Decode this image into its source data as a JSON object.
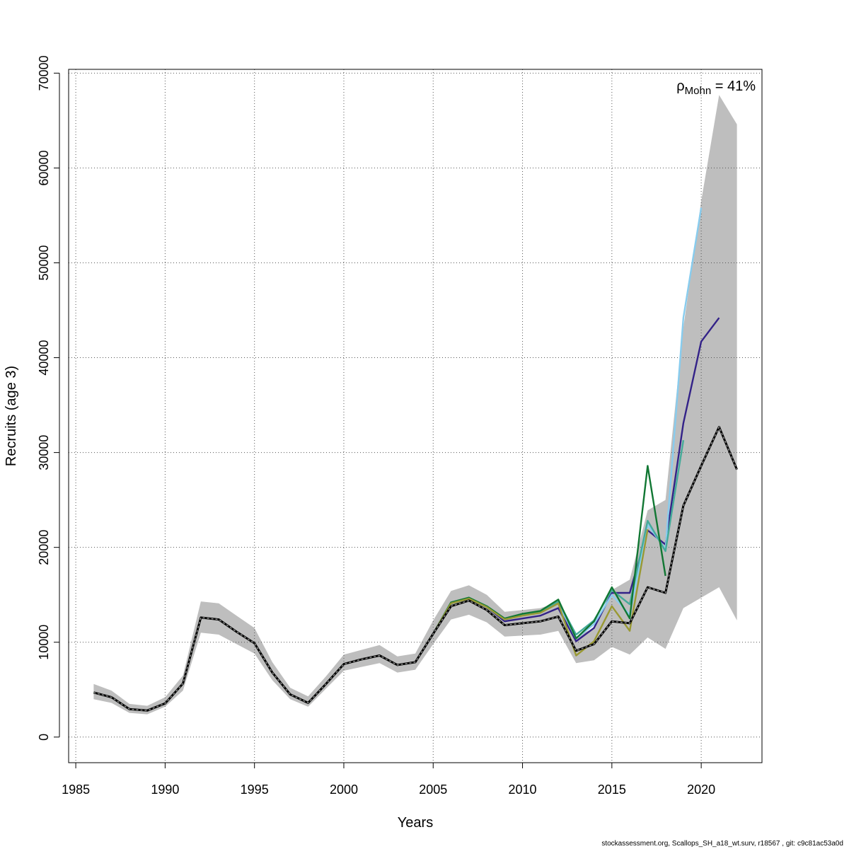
{
  "chart_data": {
    "type": "line",
    "xlabel": "Years",
    "ylabel": "Recruits (age 3)",
    "xlim": [
      1984.6,
      2023.4
    ],
    "ylim": [
      -2700,
      70400
    ],
    "xticks": [
      1985,
      1990,
      1995,
      2000,
      2005,
      2010,
      2015,
      2020
    ],
    "yticks": [
      0,
      10000,
      20000,
      30000,
      40000,
      50000,
      60000,
      70000
    ],
    "grid": true,
    "annotation": {
      "rho_symbol": "ρ",
      "rho_subscript": "Mohn",
      "rho_value": " = 41%"
    },
    "band": {
      "x": [
        1986,
        1987,
        1988,
        1989,
        1990,
        1991,
        1992,
        1993,
        1994,
        1995,
        1996,
        1997,
        1998,
        1999,
        2000,
        2001,
        2002,
        2003,
        2004,
        2005,
        2006,
        2007,
        2008,
        2009,
        2010,
        2011,
        2012,
        2013,
        2014,
        2015,
        2016,
        2017,
        2018,
        2019,
        2020,
        2021,
        2022
      ],
      "lower": [
        4000,
        3600,
        2550,
        2400,
        3200,
        4900,
        11000,
        10800,
        9800,
        8800,
        6000,
        4000,
        3200,
        5100,
        7000,
        7400,
        7800,
        6800,
        7100,
        9800,
        12400,
        12900,
        12100,
        10600,
        10700,
        10800,
        11200,
        7800,
        8100,
        9500,
        8700,
        10500,
        9300,
        13600,
        14700,
        15800,
        12300
      ],
      "upper": [
        5600,
        4900,
        3500,
        3300,
        4200,
        6500,
        14300,
        14100,
        12800,
        11500,
        7900,
        5200,
        4300,
        6400,
        8700,
        9200,
        9700,
        8500,
        8800,
        12300,
        15400,
        16000,
        15000,
        13200,
        13400,
        13600,
        14200,
        10600,
        11500,
        15500,
        16600,
        23900,
        25000,
        43200,
        56500,
        67700,
        64600
      ]
    },
    "series": [
      {
        "color": "#000000",
        "dashed": true,
        "x": [
          1986,
          1987,
          1988,
          1989,
          1990,
          1991,
          1992,
          1993,
          1994,
          1995,
          1996,
          1997,
          1998,
          1999,
          2000,
          2001,
          2002,
          2003,
          2004,
          2005,
          2006,
          2007,
          2008,
          2009,
          2010,
          2011,
          2012,
          2013,
          2014,
          2015,
          2016,
          2017,
          2018,
          2019,
          2020,
          2021,
          2022
        ],
        "values": [
          4700,
          4200,
          2950,
          2800,
          3550,
          5650,
          12600,
          12400,
          11100,
          9900,
          6800,
          4500,
          3600,
          5600,
          7700,
          8200,
          8600,
          7600,
          7900,
          10900,
          13800,
          14400,
          13400,
          11800,
          12000,
          12200,
          12700,
          9100,
          9800,
          12200,
          12000,
          15800,
          15200,
          24400,
          28600,
          32700,
          28200
        ]
      },
      {
        "color": "#332288",
        "dashed": false,
        "x": [
          1986,
          1987,
          1988,
          1989,
          1990,
          1991,
          1992,
          1993,
          1994,
          1995,
          1996,
          1997,
          1998,
          1999,
          2000,
          2001,
          2002,
          2003,
          2004,
          2005,
          2006,
          2007,
          2008,
          2009,
          2010,
          2011,
          2012,
          2013,
          2014,
          2015,
          2016,
          2017,
          2018,
          2019,
          2020,
          2021
        ],
        "values": [
          4700,
          4200,
          2950,
          2800,
          3550,
          5650,
          12600,
          12400,
          11100,
          9900,
          6800,
          4500,
          3600,
          5600,
          7700,
          8200,
          8600,
          7600,
          7900,
          10900,
          14100,
          14600,
          13700,
          12200,
          12500,
          12800,
          13600,
          10100,
          11500,
          15200,
          15200,
          21800,
          20300,
          33100,
          41700,
          44200
        ]
      },
      {
        "color": "#88CCEE",
        "dashed": false,
        "x": [
          1986,
          1987,
          1988,
          1989,
          1990,
          1991,
          1992,
          1993,
          1994,
          1995,
          1996,
          1997,
          1998,
          1999,
          2000,
          2001,
          2002,
          2003,
          2004,
          2005,
          2006,
          2007,
          2008,
          2009,
          2010,
          2011,
          2012,
          2013,
          2014,
          2015,
          2016,
          2017,
          2018,
          2019,
          2020
        ],
        "values": [
          4700,
          4200,
          2950,
          2800,
          3550,
          5650,
          12600,
          12400,
          11100,
          9900,
          6800,
          4500,
          3600,
          5600,
          7700,
          8200,
          8600,
          7600,
          7900,
          10900,
          14100,
          14600,
          13700,
          12400,
          12800,
          13100,
          14100,
          10400,
          11900,
          15000,
          12900,
          22400,
          19800,
          44200,
          55800
        ]
      },
      {
        "color": "#44AA99",
        "dashed": false,
        "x": [
          1986,
          1987,
          1988,
          1989,
          1990,
          1991,
          1992,
          1993,
          1994,
          1995,
          1996,
          1997,
          1998,
          1999,
          2000,
          2001,
          2002,
          2003,
          2004,
          2005,
          2006,
          2007,
          2008,
          2009,
          2010,
          2011,
          2012,
          2013,
          2014,
          2015,
          2016,
          2017,
          2018,
          2019
        ],
        "values": [
          4700,
          4200,
          2950,
          2800,
          3550,
          5650,
          12600,
          12400,
          11100,
          9900,
          6800,
          4500,
          3600,
          5600,
          7700,
          8200,
          8600,
          7600,
          7900,
          10900,
          14100,
          14600,
          13700,
          12400,
          12900,
          13200,
          14300,
          10800,
          12300,
          15500,
          14000,
          22800,
          19600,
          31300
        ]
      },
      {
        "color": "#117733",
        "dashed": false,
        "x": [
          1986,
          1987,
          1988,
          1989,
          1990,
          1991,
          1992,
          1993,
          1994,
          1995,
          1996,
          1997,
          1998,
          1999,
          2000,
          2001,
          2002,
          2003,
          2004,
          2005,
          2006,
          2007,
          2008,
          2009,
          2010,
          2011,
          2012,
          2013,
          2014,
          2015,
          2016,
          2017,
          2018
        ],
        "values": [
          4700,
          4200,
          2950,
          2800,
          3550,
          5650,
          12600,
          12400,
          11100,
          9900,
          6800,
          4500,
          3600,
          5600,
          7700,
          8200,
          8600,
          7600,
          7900,
          10900,
          14200,
          14700,
          13800,
          12500,
          13000,
          13300,
          14500,
          10400,
          12200,
          15800,
          12500,
          28600,
          17000
        ]
      },
      {
        "color": "#999933",
        "dashed": false,
        "x": [
          1986,
          1987,
          1988,
          1989,
          1990,
          1991,
          1992,
          1993,
          1994,
          1995,
          1996,
          1997,
          1998,
          1999,
          2000,
          2001,
          2002,
          2003,
          2004,
          2005,
          2006,
          2007,
          2008,
          2009,
          2010,
          2011,
          2012,
          2013,
          2014,
          2015,
          2016,
          2017
        ],
        "values": [
          4700,
          4200,
          2950,
          2800,
          3550,
          5650,
          12600,
          12400,
          11100,
          9900,
          6800,
          4500,
          3600,
          5600,
          7700,
          8200,
          8600,
          7600,
          7900,
          10900,
          14100,
          14600,
          13700,
          12400,
          12800,
          13100,
          14100,
          8600,
          10100,
          13800,
          11200,
          21900
        ]
      }
    ]
  },
  "footer": "stockassessment.org, Scallops_SH_a18_wt.surv, r18567 , git: c9c81ac53a0d"
}
